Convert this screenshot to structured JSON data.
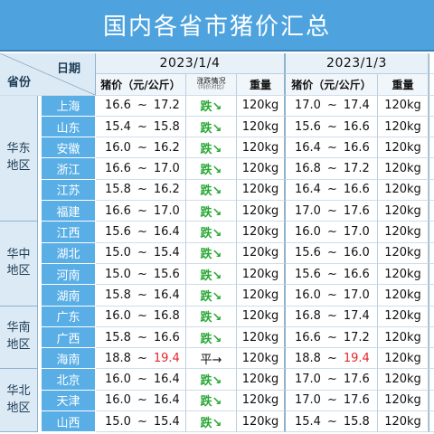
{
  "title": "国内各省市猪价汇总",
  "header": {
    "date_label": "日期",
    "province_label": "省份",
    "dates": [
      "2023/1/4",
      "2023/1/3"
    ],
    "price_col": "猪价（元/公斤）",
    "trend_col": "涨跌情况",
    "trend_sub": "(均价对比)",
    "weight_col": "重量"
  },
  "regions": [
    {
      "name": "华东\n地区",
      "rows": 6
    },
    {
      "name": "华中\n地区",
      "rows": 4
    },
    {
      "name": "华南\n地区",
      "rows": 3
    },
    {
      "name": "华北\n地区",
      "rows": 3
    }
  ],
  "rows": [
    {
      "province": "上海",
      "d1_low": "16.6",
      "d1_high": "17.2",
      "trend": "跌↘",
      "d1_weight": "120kg",
      "d2_low": "17.0",
      "d2_high": "17.4",
      "d2_weight": "120kg"
    },
    {
      "province": "山东",
      "d1_low": "15.4",
      "d1_high": "15.8",
      "trend": "跌↘",
      "d1_weight": "120kg",
      "d2_low": "15.6",
      "d2_high": "16.6",
      "d2_weight": "120kg"
    },
    {
      "province": "安徽",
      "d1_low": "16.0",
      "d1_high": "16.2",
      "trend": "跌↘",
      "d1_weight": "120kg",
      "d2_low": "16.4",
      "d2_high": "16.6",
      "d2_weight": "120kg"
    },
    {
      "province": "浙江",
      "d1_low": "16.6",
      "d1_high": "17.0",
      "trend": "跌↘",
      "d1_weight": "120kg",
      "d2_low": "16.8",
      "d2_high": "17.2",
      "d2_weight": "120kg"
    },
    {
      "province": "江苏",
      "d1_low": "15.8",
      "d1_high": "16.2",
      "trend": "跌↘",
      "d1_weight": "120kg",
      "d2_low": "16.4",
      "d2_high": "16.6",
      "d2_weight": "120kg"
    },
    {
      "province": "福建",
      "d1_low": "16.6",
      "d1_high": "17.0",
      "trend": "跌↘",
      "d1_weight": "120kg",
      "d2_low": "17.0",
      "d2_high": "17.6",
      "d2_weight": "120kg"
    },
    {
      "province": "江西",
      "d1_low": "15.6",
      "d1_high": "16.4",
      "trend": "跌↘",
      "d1_weight": "120kg",
      "d2_low": "16.0",
      "d2_high": "17.0",
      "d2_weight": "120kg"
    },
    {
      "province": "湖北",
      "d1_low": "15.0",
      "d1_high": "15.4",
      "trend": "跌↘",
      "d1_weight": "120kg",
      "d2_low": "15.6",
      "d2_high": "16.0",
      "d2_weight": "120kg"
    },
    {
      "province": "河南",
      "d1_low": "15.0",
      "d1_high": "15.6",
      "trend": "跌↘",
      "d1_weight": "120kg",
      "d2_low": "15.6",
      "d2_high": "16.6",
      "d2_weight": "120kg"
    },
    {
      "province": "湖南",
      "d1_low": "15.8",
      "d1_high": "16.4",
      "trend": "跌↘",
      "d1_weight": "120kg",
      "d2_low": "16.0",
      "d2_high": "17.0",
      "d2_weight": "120kg"
    },
    {
      "province": "广东",
      "d1_low": "16.0",
      "d1_high": "16.8",
      "trend": "跌↘",
      "d1_weight": "120kg",
      "d2_low": "16.8",
      "d2_high": "17.4",
      "d2_weight": "120kg"
    },
    {
      "province": "广西",
      "d1_low": "15.8",
      "d1_high": "16.6",
      "trend": "跌↘",
      "d1_weight": "120kg",
      "d2_low": "16.6",
      "d2_high": "17.2",
      "d2_weight": "120kg"
    },
    {
      "province": "海南",
      "d1_low": "18.8",
      "d1_high": "19.4",
      "trend": "平→",
      "d1_weight": "120kg",
      "d2_low": "18.8",
      "d2_high": "19.4",
      "d2_weight": "120kg",
      "high_red": true
    },
    {
      "province": "北京",
      "d1_low": "16.0",
      "d1_high": "16.4",
      "trend": "跌↘",
      "d1_weight": "120kg",
      "d2_low": "17.0",
      "d2_high": "17.6",
      "d2_weight": "120kg"
    },
    {
      "province": "天津",
      "d1_low": "16.0",
      "d1_high": "16.4",
      "trend": "跌↘",
      "d1_weight": "120kg",
      "d2_low": "17.0",
      "d2_high": "17.6",
      "d2_weight": "120kg"
    },
    {
      "province": "山西",
      "d1_low": "15.0",
      "d1_high": "15.4",
      "trend": "跌↘",
      "d1_weight": "120kg",
      "d2_low": "15.4",
      "d2_high": "15.8",
      "d2_weight": "120kg"
    }
  ],
  "colors": {
    "accent": "#4ea3df",
    "province_bg": "#5aaee6",
    "down": "#2aa836",
    "highlight": "#e2262b"
  }
}
